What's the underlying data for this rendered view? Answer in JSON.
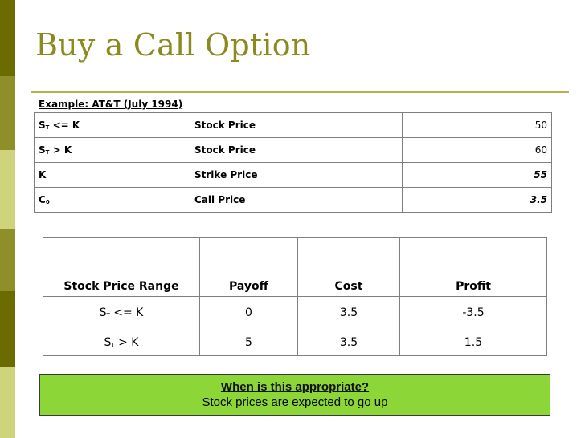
{
  "slide": {
    "title": "Buy a Call Option",
    "colors": {
      "title": "#8a8a1f",
      "rule": "#b5b34a",
      "sidebar": [
        "#6b6b00",
        "#8f8f2a",
        "#cfd47c"
      ],
      "box": "#8cd638"
    }
  },
  "example": {
    "label": "Example: AT&T (July 1994)",
    "rows": [
      {
        "sym": "S",
        "sub": "T",
        "cond": " <= K",
        "label": "Stock Price",
        "value": "50"
      },
      {
        "sym": "S",
        "sub": "T",
        "cond": " > K",
        "label": "Stock Price",
        "value": "60"
      },
      {
        "sym": "K",
        "sub": "",
        "cond": "",
        "label": "Strike Price",
        "value": "55"
      },
      {
        "sym": "C",
        "sub": "0",
        "cond": "",
        "label": "Call Price",
        "value": "3.5"
      }
    ]
  },
  "payoff_table": {
    "headers": [
      "Stock Price Range",
      "Payoff",
      "Cost",
      "Profit"
    ],
    "rows": [
      {
        "sym": "S",
        "sub": "T",
        "cond": " <= K",
        "payoff": "0",
        "cost": "3.5",
        "profit": "-3.5"
      },
      {
        "sym": "S",
        "sub": "T",
        "cond": " > K",
        "payoff": "5",
        "cost": "3.5",
        "profit": "1.5"
      }
    ]
  },
  "note": {
    "title": "When is this appropriate?",
    "text": "Stock prices are expected to go up"
  }
}
